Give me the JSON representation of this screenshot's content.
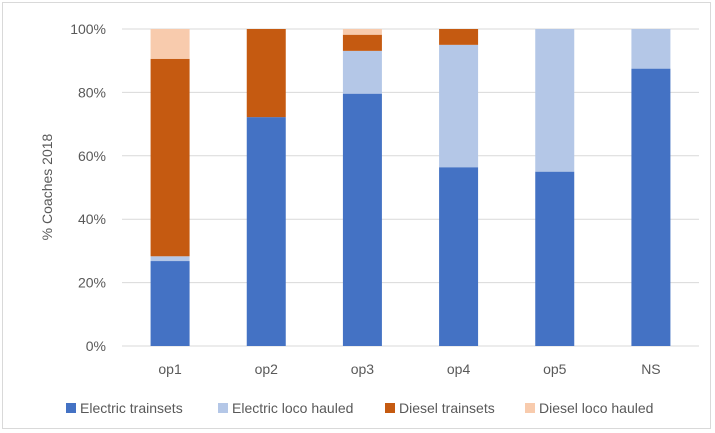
{
  "chart_data": {
    "type": "bar",
    "stacked": true,
    "percent_stacked": true,
    "categories": [
      "op1",
      "op2",
      "op3",
      "op4",
      "op5",
      "NS"
    ],
    "series": [
      {
        "name": "Electric trainsets",
        "color": "#4472c4",
        "values": [
          26.8,
          72.2,
          79.6,
          56.4,
          55.0,
          87.5
        ]
      },
      {
        "name": "Electric loco hauled",
        "color": "#b4c7e7",
        "values": [
          1.5,
          0.0,
          13.5,
          38.6,
          45.0,
          12.5
        ]
      },
      {
        "name": "Diesel trainsets",
        "color": "#c55a11",
        "values": [
          62.3,
          27.8,
          5.1,
          5.0,
          0.0,
          0.0
        ]
      },
      {
        "name": "Diesel loco hauled",
        "color": "#f8cbad",
        "values": [
          9.4,
          0.0,
          1.8,
          0.0,
          0.0,
          0.0
        ]
      }
    ],
    "ylabel": "% Coaches 2018",
    "xlabel": "",
    "ylim": [
      0,
      100
    ],
    "yticks": [
      "0%",
      "20%",
      "40%",
      "60%",
      "80%",
      "100%"
    ],
    "grid": true,
    "legend_position": "bottom"
  }
}
